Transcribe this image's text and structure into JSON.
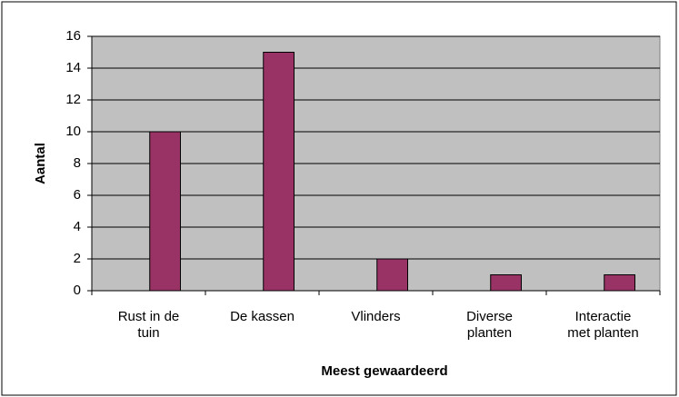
{
  "chart_data": {
    "type": "bar",
    "categories": [
      "Rust in de tuin",
      "De kassen",
      "Vlinders",
      "Diverse planten",
      "Interactie met planten"
    ],
    "values": [
      10,
      15,
      2,
      1,
      1
    ],
    "color": "#993366",
    "ylim": [
      0,
      16
    ],
    "yticks": [
      0,
      2,
      4,
      6,
      8,
      10,
      12,
      14,
      16
    ],
    "grid": true,
    "x_label": "Meest gewaardeerd",
    "y_label": "Aantal"
  }
}
